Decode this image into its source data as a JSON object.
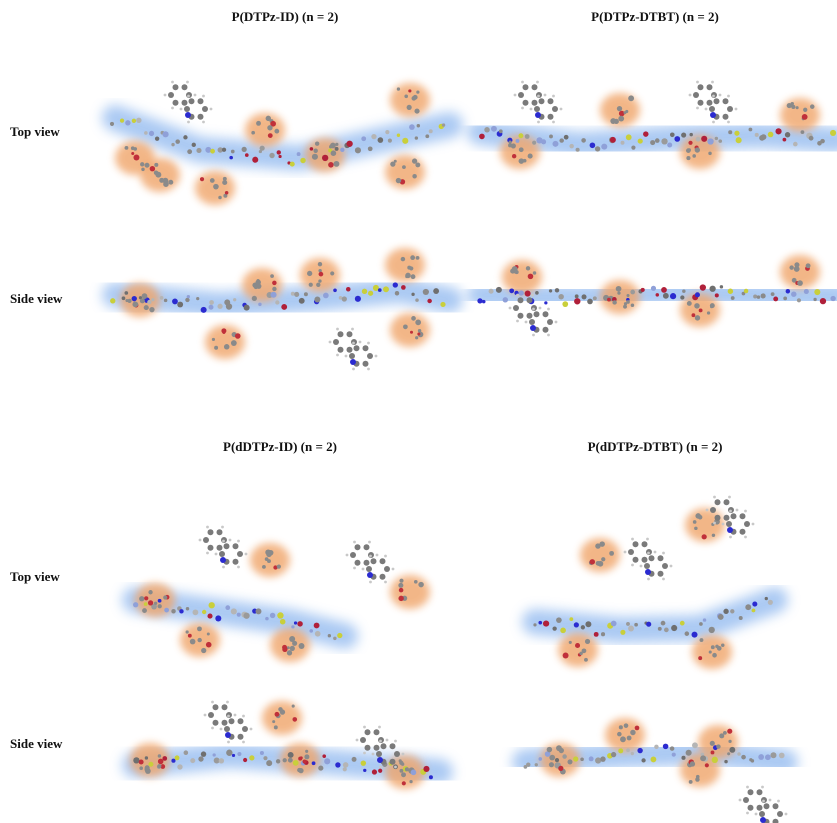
{
  "sections": [
    {
      "panels": [
        {
          "title": "P(DTPz-ID) (n = 2)"
        },
        {
          "title": "P(DTPz-DTBT) (n = 2)"
        }
      ],
      "row_labels": [
        "Top view",
        "Side view"
      ]
    },
    {
      "panels": [
        {
          "title": "P(dDTPz-ID) (n = 2)"
        },
        {
          "title": "P(dDTPz-DTBT) (n = 2)"
        }
      ],
      "row_labels": [
        "Top view",
        "Side view"
      ]
    }
  ]
}
